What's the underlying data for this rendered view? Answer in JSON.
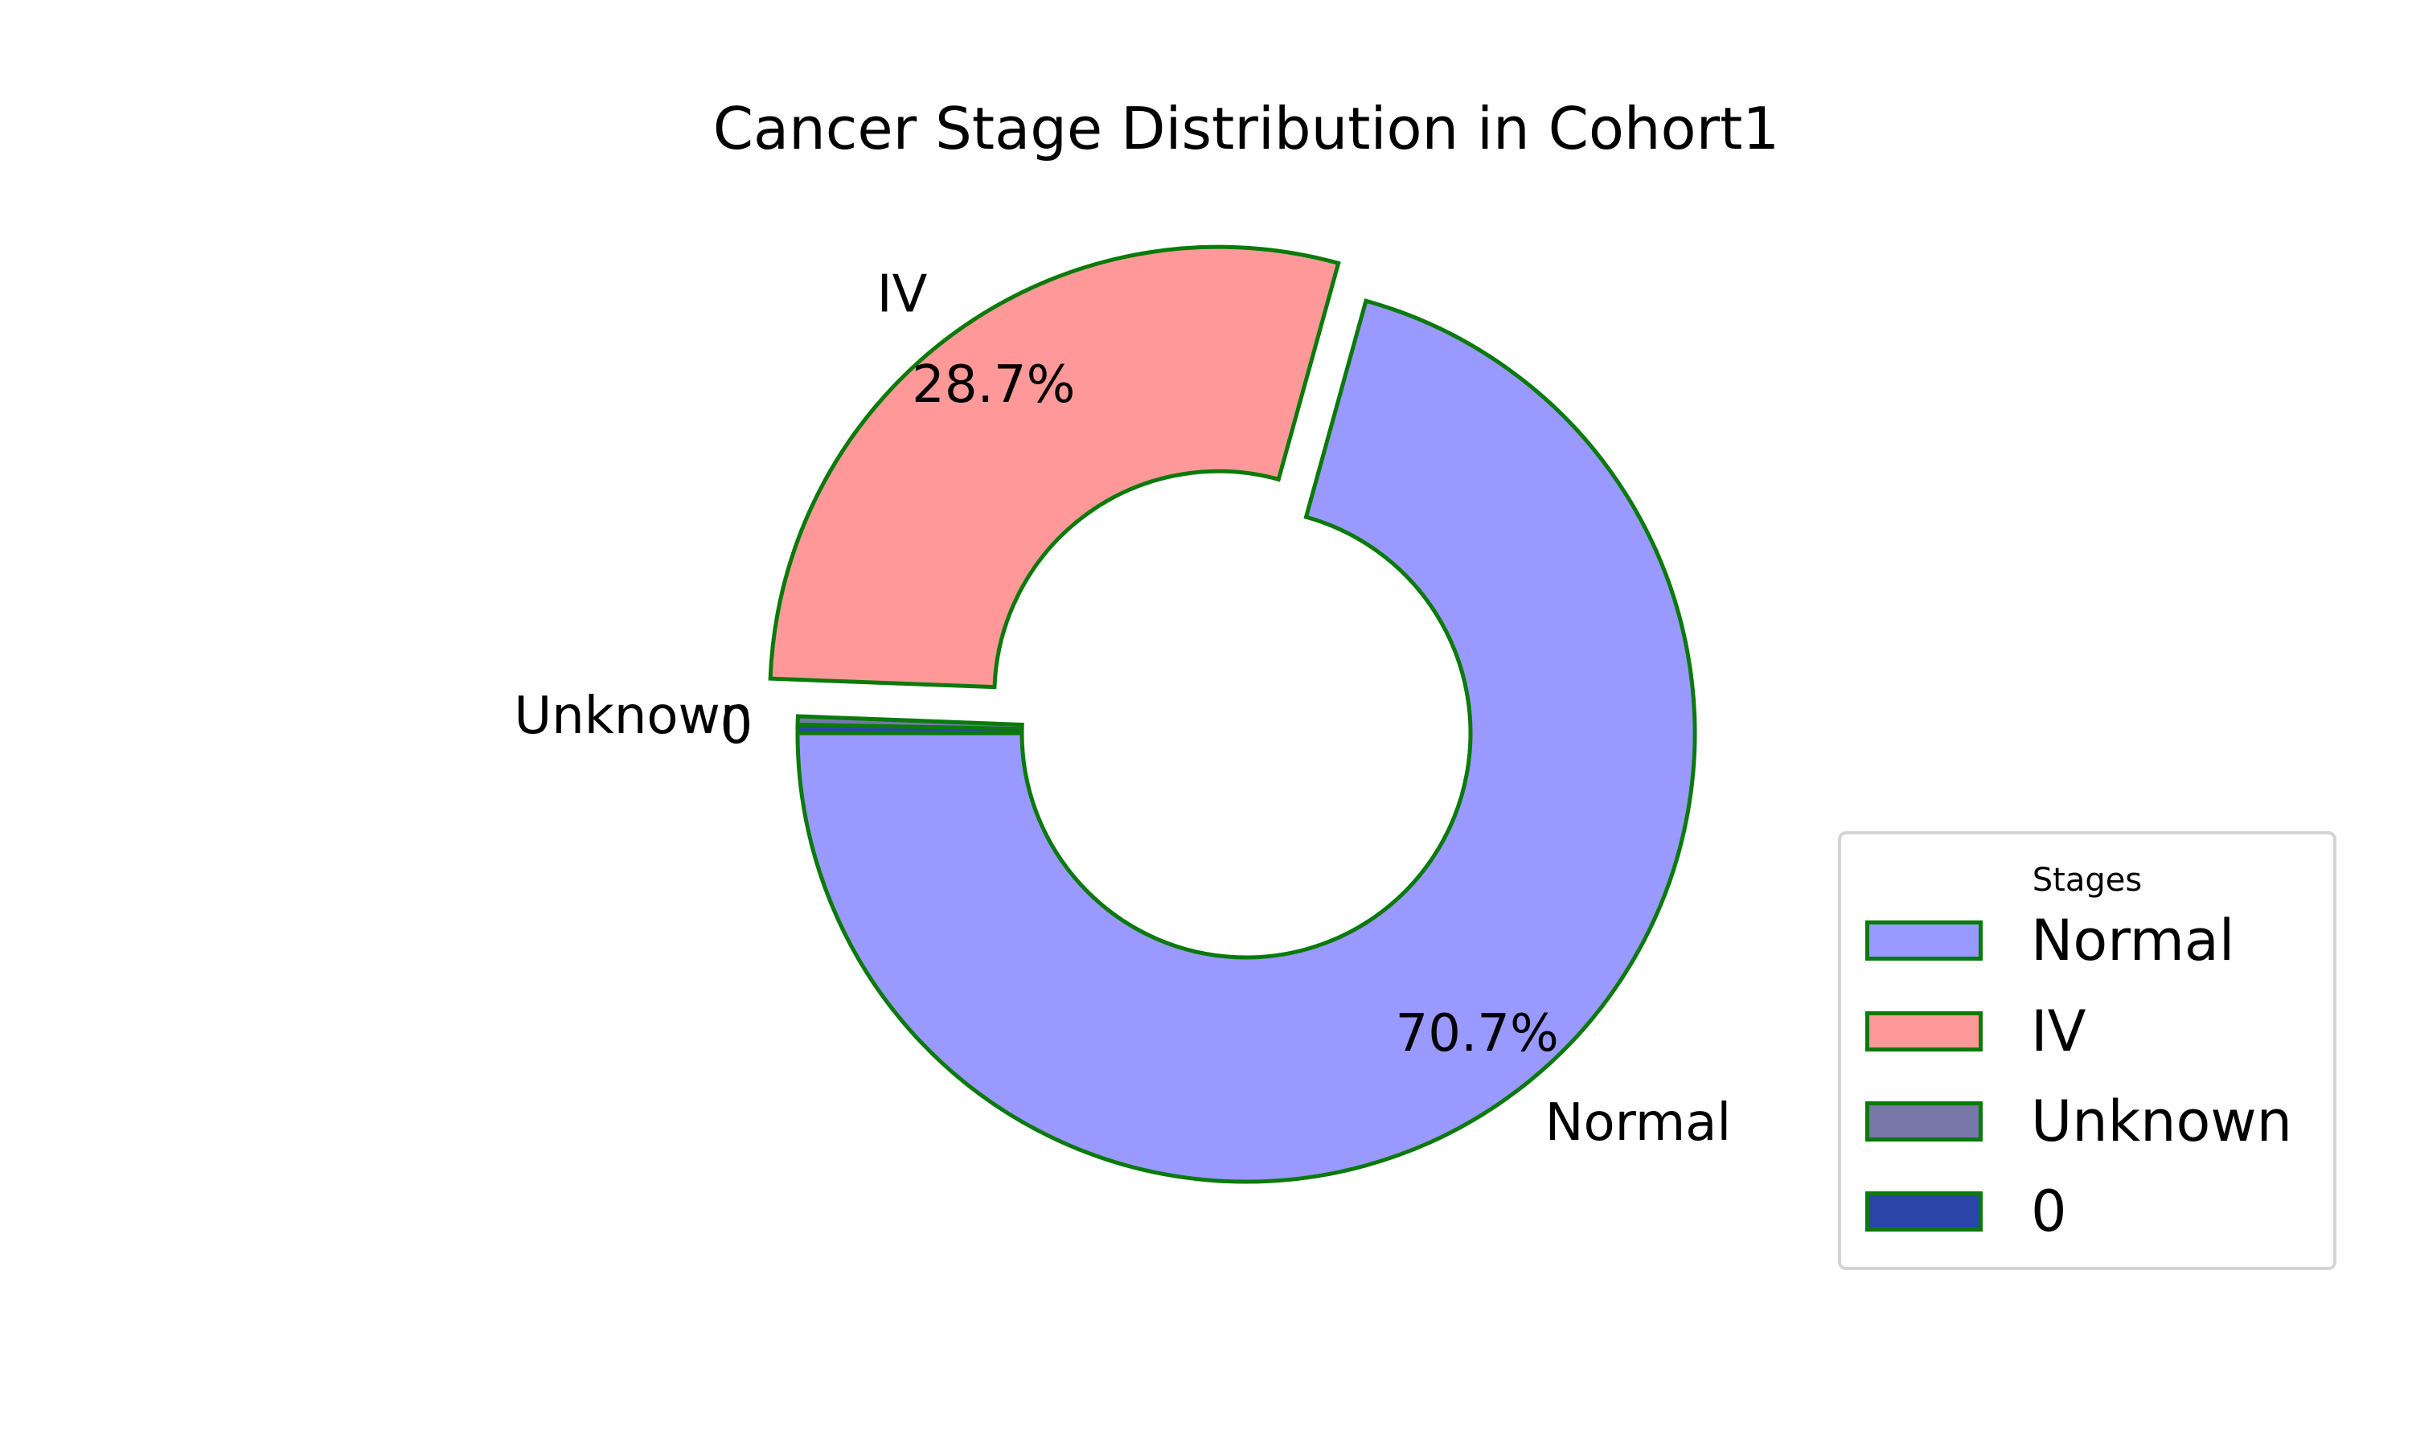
{
  "chart_data": {
    "type": "pie",
    "title": "Cancer Stage Distribution in Cohort1",
    "donut": true,
    "categories": [
      "Normal",
      "IV",
      "Unknown",
      "0"
    ],
    "values": [
      70.7,
      28.7,
      0.3,
      0.3
    ],
    "pct_labels": [
      "70.7%",
      "28.7%",
      "",
      ""
    ],
    "colors": [
      "#9999ff",
      "#ff9999",
      "#7777aa",
      "#2a44aa"
    ],
    "edge_color": "#0a7a0a",
    "explode_category": "IV",
    "legend": {
      "title": "Stages",
      "placement": "lower-right",
      "items": [
        "Normal",
        "IV",
        "Unknown",
        "0"
      ]
    }
  }
}
